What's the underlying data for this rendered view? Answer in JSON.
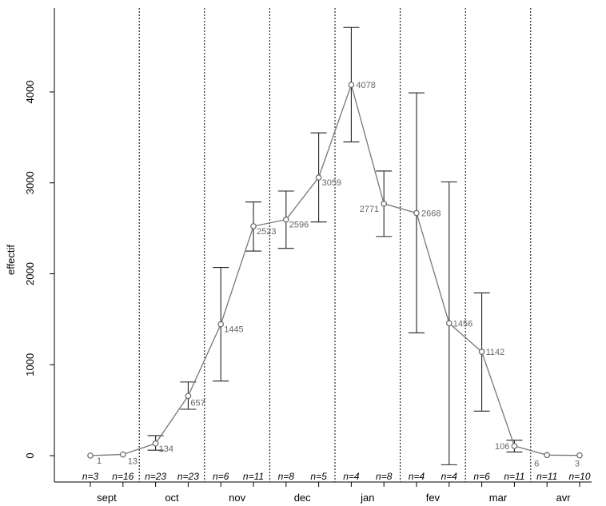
{
  "chart_data": {
    "type": "line",
    "title": "",
    "xlabel": "",
    "ylabel": "effectif",
    "ylim": [
      -250,
      4900
    ],
    "y_ticks": [
      0,
      1000,
      2000,
      3000,
      4000
    ],
    "y_tick_labels": [
      "0",
      "1000",
      "2000",
      "3000",
      "4000"
    ],
    "months": [
      "sept",
      "oct",
      "nov",
      "dec",
      "jan",
      "fev",
      "mar",
      "avr"
    ],
    "series": [
      {
        "points": [
          {
            "value": 1,
            "label": "1",
            "n": "n=3",
            "err_low": null,
            "err_high": null
          },
          {
            "value": 13,
            "label": "13",
            "n": "n=16",
            "err_low": null,
            "err_high": null
          },
          {
            "value": 134,
            "label": "134",
            "n": "n=23",
            "err_low": 60,
            "err_high": 220
          },
          {
            "value": 657,
            "label": "657",
            "n": "n=23",
            "err_low": 510,
            "err_high": 810
          },
          {
            "value": 1445,
            "label": "1445",
            "n": "n=6",
            "err_low": 820,
            "err_high": 2070
          },
          {
            "value": 2523,
            "label": "2523",
            "n": "n=11",
            "err_low": 2250,
            "err_high": 2790
          },
          {
            "value": 2596,
            "label": "2596",
            "n": "n=8",
            "err_low": 2280,
            "err_high": 2910
          },
          {
            "value": 3059,
            "label": "3059",
            "n": "n=5",
            "err_low": 2570,
            "err_high": 3550
          },
          {
            "value": 4078,
            "label": "4078",
            "n": "n=4",
            "err_low": 3450,
            "err_high": 4710
          },
          {
            "value": 2771,
            "label": "2771",
            "n": "n=8",
            "err_low": 2410,
            "err_high": 3130
          },
          {
            "value": 2668,
            "label": "2668",
            "n": "n=4",
            "err_low": 1350,
            "err_high": 3990
          },
          {
            "value": 1456,
            "label": "1456",
            "n": "n=4",
            "err_low": -100,
            "err_high": 3010
          },
          {
            "value": 1142,
            "label": "1142",
            "n": "n=6",
            "err_low": 490,
            "err_high": 1790
          },
          {
            "value": 106,
            "label": "106",
            "n": "n=11",
            "err_low": 40,
            "err_high": 170
          },
          {
            "value": 6,
            "label": "6",
            "n": "n=11",
            "err_low": null,
            "err_high": null
          },
          {
            "value": 3,
            "label": "3",
            "n": "n=10",
            "err_low": null,
            "err_high": null
          }
        ]
      }
    ],
    "grid": false,
    "month_dividers": "dotted vertical lines between months"
  },
  "colors": {
    "line": "#777777",
    "point": "#666666",
    "errorbar": "#222222",
    "label": "#666666",
    "axis": "#000000"
  }
}
